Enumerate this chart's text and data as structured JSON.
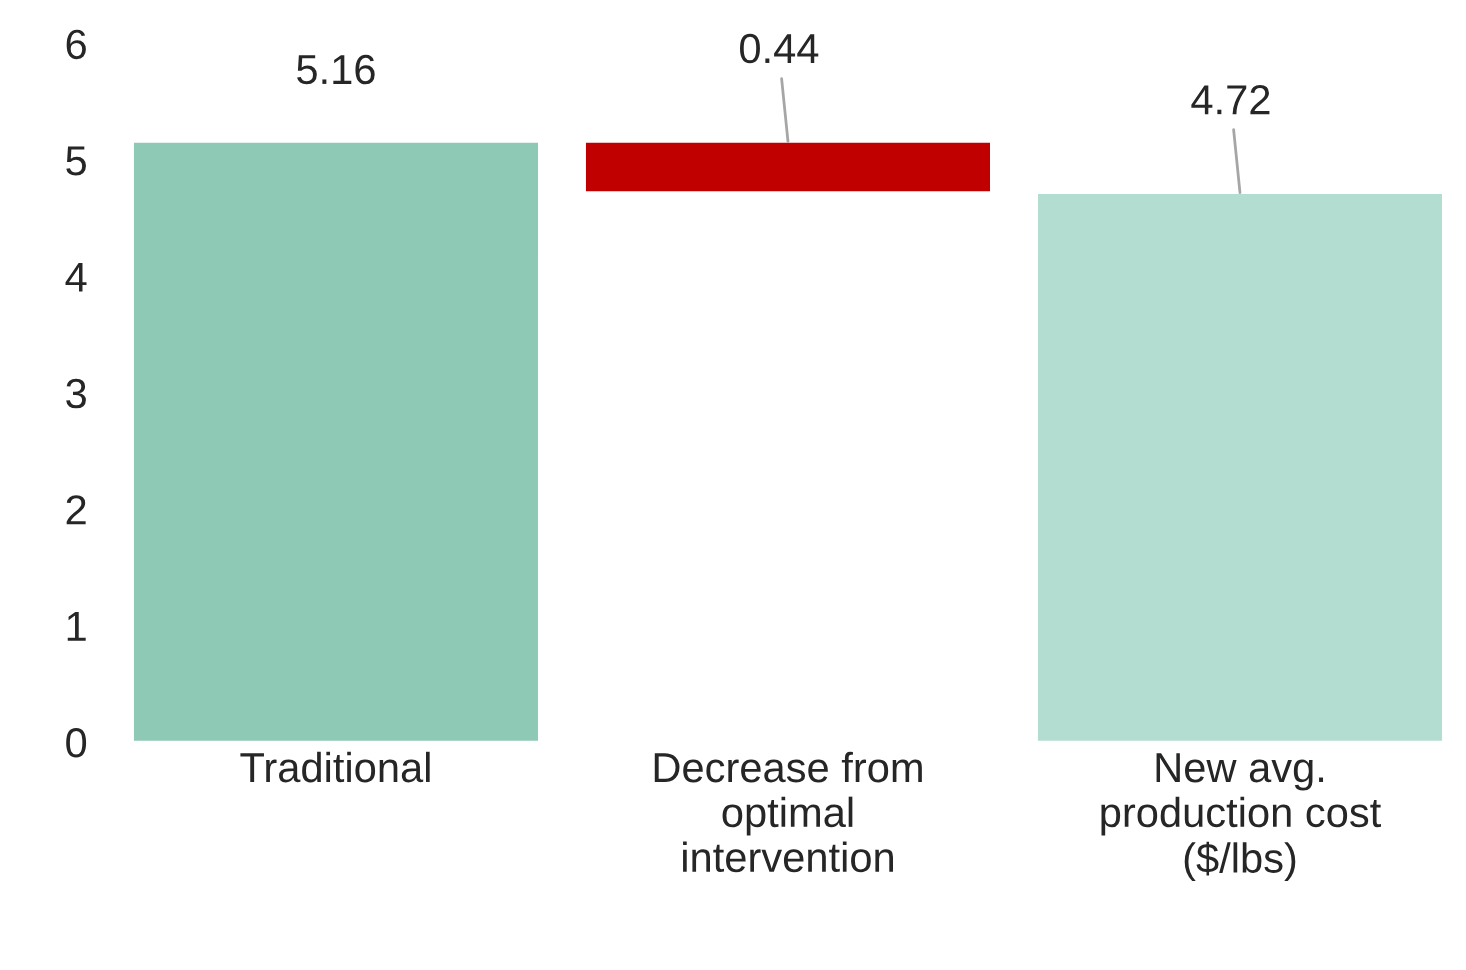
{
  "chart_data": {
    "type": "bar",
    "categories": [
      "Traditional",
      "Decrease from\noptimal\nintervention",
      "New avg.\nproduction cost\n($/lbs)"
    ],
    "values": [
      5.16,
      0.44,
      4.72
    ],
    "base": [
      0,
      4.72,
      0
    ],
    "colors": [
      "#8ec9b6",
      "#c00000",
      "#b2ddd0"
    ],
    "ylim": [
      0,
      6
    ],
    "yticks": [
      0,
      1,
      2,
      3,
      4,
      5,
      6
    ],
    "data_labels": true,
    "grid": false,
    "legend": false
  }
}
